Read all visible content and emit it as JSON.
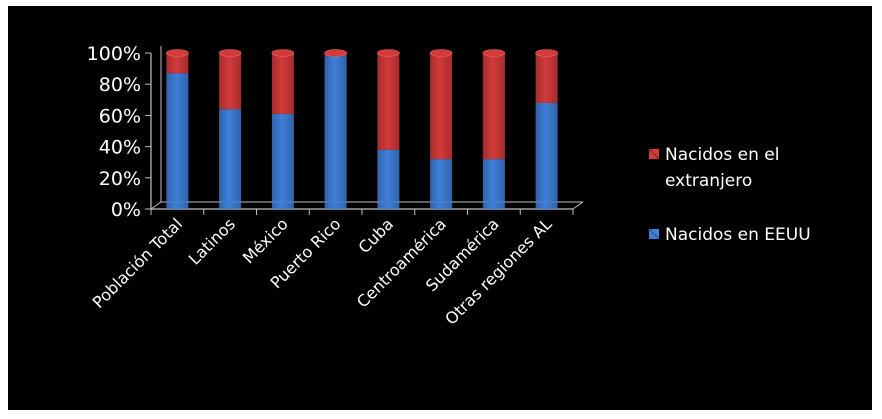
{
  "chart_data": {
    "type": "bar",
    "stacked": true,
    "categories": [
      "Población Total",
      "Latinos",
      "México",
      "Puerto Rico",
      "Cuba",
      "Centroamérica",
      "Sudamérica",
      "Otras regiones AL"
    ],
    "series": [
      {
        "name": "Nacidos en EEUU",
        "color": "#3f7fd8",
        "values": [
          87,
          64,
          61,
          98,
          38,
          32,
          32,
          68
        ]
      },
      {
        "name": "Nacidos en el extranjero",
        "color": "#d33a3a",
        "values": [
          13,
          36,
          39,
          2,
          62,
          68,
          68,
          32
        ]
      }
    ],
    "legend": {
      "position": "right",
      "items": [
        {
          "lines": [
            "Nacidos en el",
            "extranjero"
          ],
          "color": "#d33a3a"
        },
        {
          "lines": [
            "Nacidos en EEUU"
          ],
          "color": "#3f7fd8"
        }
      ]
    },
    "y_ticks": [
      "0%",
      "20%",
      "40%",
      "60%",
      "80%",
      "100%"
    ],
    "ylim": [
      0,
      100
    ],
    "title": "",
    "xlabel": "",
    "ylabel": ""
  }
}
